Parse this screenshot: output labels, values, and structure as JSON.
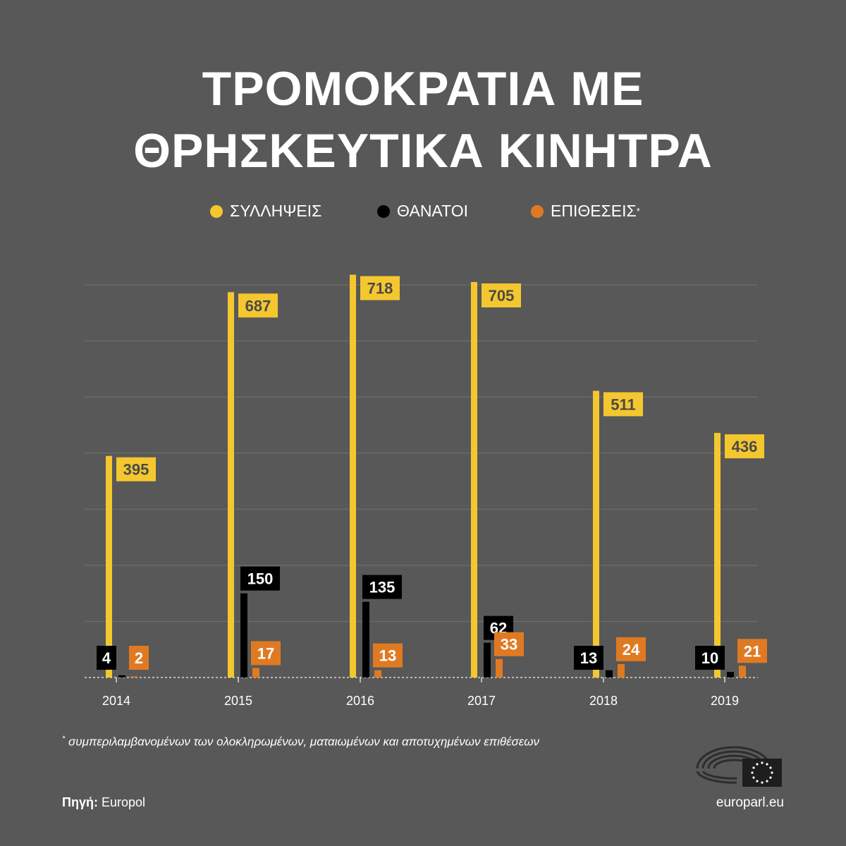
{
  "title": {
    "line1": "ΤΡΟΜΟΚΡΑΤΙΑ ΜΕ",
    "line2": "ΘΡΗΣΚΕΥΤΙΚΑ ΚΙΝΗΤΡΑ"
  },
  "legend": [
    {
      "label": "ΣΥΛΛΗΨΕΙΣ",
      "mark": "",
      "color": "#f5c72f"
    },
    {
      "label": "ΘΑΝΑΤΟΙ",
      "mark": "",
      "color": "#000000"
    },
    {
      "label": "ΕΠΙΘΕΣΕΙΣ",
      "mark": "*",
      "color": "#e07a22"
    }
  ],
  "chart_data": {
    "type": "bar",
    "categories": [
      "2014",
      "2015",
      "2016",
      "2017",
      "2018",
      "2019"
    ],
    "series": [
      {
        "name": "ΣΥΛΛΗΨΕΙΣ",
        "color": "#f5c72f",
        "values": [
          395,
          687,
          718,
          705,
          511,
          436
        ]
      },
      {
        "name": "ΘΑΝΑΤΟΙ",
        "color": "#000000",
        "values": [
          4,
          150,
          135,
          62,
          13,
          10
        ]
      },
      {
        "name": "ΕΠΙΘΕΣΕΙΣ",
        "color": "#e07a22",
        "values": [
          2,
          17,
          13,
          33,
          24,
          21
        ]
      }
    ],
    "ylim": [
      0,
      700
    ],
    "grid": true,
    "legend_position": "top"
  },
  "footnote": {
    "mark": "*",
    "text": "συμπεριλαμβανομένων των ολοκληρωμένων, ματαιωμένων και αποτυχημένων επιθέσεων"
  },
  "source": {
    "label": "Πηγή:",
    "value": "Europol"
  },
  "site": "europarl.eu"
}
